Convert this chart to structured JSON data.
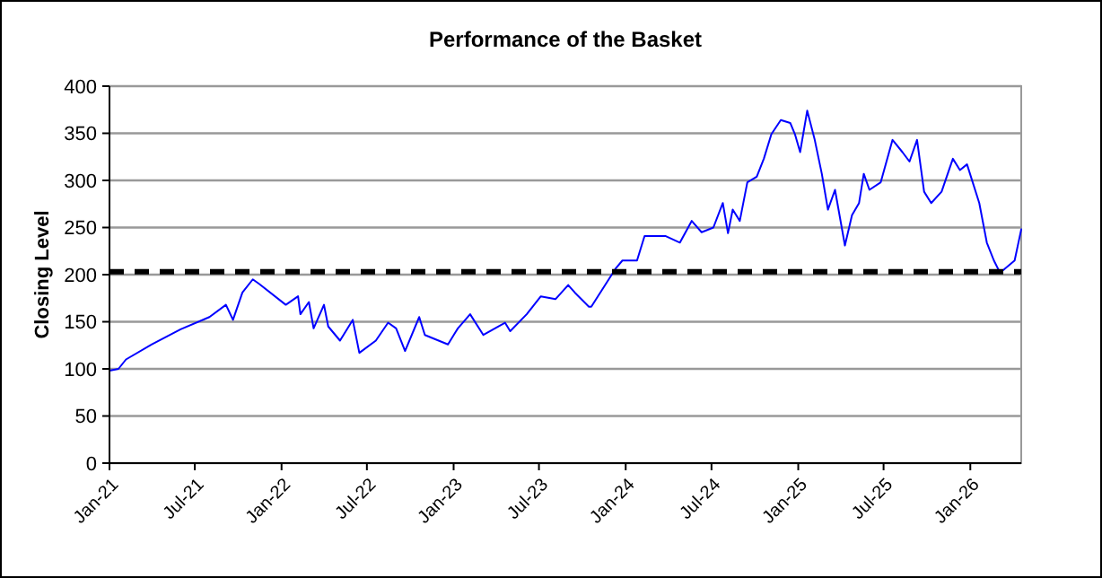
{
  "chart_data": {
    "type": "line",
    "title": "Performance of the Basket",
    "ylabel": "Closing Level",
    "x": [
      "2021-01-01",
      "2021-01-20",
      "2021-02-05",
      "2021-04-01",
      "2021-06-01",
      "2021-08-01",
      "2021-09-05",
      "2021-09-20",
      "2021-10-10",
      "2021-11-01",
      "2021-11-15",
      "2022-01-10",
      "2022-02-05",
      "2022-02-10",
      "2022-02-28",
      "2022-03-10",
      "2022-04-01",
      "2022-04-10",
      "2022-05-05",
      "2022-06-01",
      "2022-06-15",
      "2022-07-20",
      "2022-08-15",
      "2022-09-01",
      "2022-09-20",
      "2022-10-20",
      "2022-11-01",
      "2022-12-20",
      "2023-01-10",
      "2023-02-05",
      "2023-03-05",
      "2023-04-20",
      "2023-05-01",
      "2023-06-05",
      "2023-07-05",
      "2023-08-05",
      "2023-09-01",
      "2023-09-15",
      "2023-10-15",
      "2023-10-20",
      "2023-12-10",
      "2023-12-25",
      "2024-01-25",
      "2024-02-10",
      "2024-03-25",
      "2024-04-25",
      "2024-05-20",
      "2024-06-10",
      "2024-07-05",
      "2024-07-25",
      "2024-08-05",
      "2024-08-15",
      "2024-08-30",
      "2024-09-15",
      "2024-10-05",
      "2024-10-20",
      "2024-11-05",
      "2024-11-25",
      "2024-12-15",
      "2024-12-25",
      "2025-01-05",
      "2025-01-20",
      "2025-02-05",
      "2025-02-20",
      "2025-03-05",
      "2025-03-20",
      "2025-04-10",
      "2025-04-25",
      "2025-05-10",
      "2025-05-20",
      "2025-06-01",
      "2025-06-25",
      "2025-07-20",
      "2025-08-10",
      "2025-08-25",
      "2025-09-10",
      "2025-09-25",
      "2025-10-10",
      "2025-11-01",
      "2025-11-25",
      "2025-12-10",
      "2025-12-25",
      "2026-01-20",
      "2026-02-05",
      "2026-02-20",
      "2026-03-05",
      "2026-04-05",
      "2026-04-19"
    ],
    "series": [
      {
        "color": "#0000ff",
        "values": [
          98,
          100,
          110,
          126,
          142,
          155,
          168,
          152,
          181,
          195,
          190,
          168,
          177,
          158,
          171,
          143,
          168,
          145,
          130,
          152,
          117,
          130,
          149,
          143,
          119,
          155,
          136,
          126,
          143,
          158,
          136,
          149,
          140,
          158,
          177,
          174,
          189,
          181,
          166,
          166,
          206,
          215,
          215,
          241,
          241,
          234,
          257,
          245,
          250,
          276,
          244,
          269,
          257,
          298,
          304,
          323,
          349,
          364,
          361,
          349,
          330,
          374,
          343,
          307,
          269,
          290,
          231,
          263,
          276,
          307,
          290,
          298,
          343,
          330,
          320,
          343,
          288,
          276,
          288,
          323,
          311,
          317,
          276,
          234,
          215,
          202,
          215,
          248
        ]
      }
    ],
    "xlim": [
      "2021-01-01",
      "2026-04-19"
    ],
    "xticks": [
      {
        "value": "2021-01-01",
        "label": "Jan-21"
      },
      {
        "value": "2021-07-01",
        "label": "Jul-21"
      },
      {
        "value": "2022-01-01",
        "label": "Jan-22"
      },
      {
        "value": "2022-07-01",
        "label": "Jul-22"
      },
      {
        "value": "2023-01-01",
        "label": "Jan-23"
      },
      {
        "value": "2023-07-01",
        "label": "Jul-23"
      },
      {
        "value": "2024-01-01",
        "label": "Jan-24"
      },
      {
        "value": "2024-07-01",
        "label": "Jul-24"
      },
      {
        "value": "2025-01-01",
        "label": "Jan-25"
      },
      {
        "value": "2025-07-01",
        "label": "Jul-25"
      },
      {
        "value": "2026-01-01",
        "label": "Jan-26"
      }
    ],
    "ylim": [
      0,
      400
    ],
    "yticks": [
      0,
      50,
      100,
      150,
      200,
      250,
      300,
      350,
      400
    ],
    "grid": "y",
    "marker": "none",
    "line_style": "solid",
    "ref_lines": [
      {
        "axis": "y",
        "value": 203,
        "color": "#000000",
        "line_style": "dashed"
      }
    ]
  }
}
